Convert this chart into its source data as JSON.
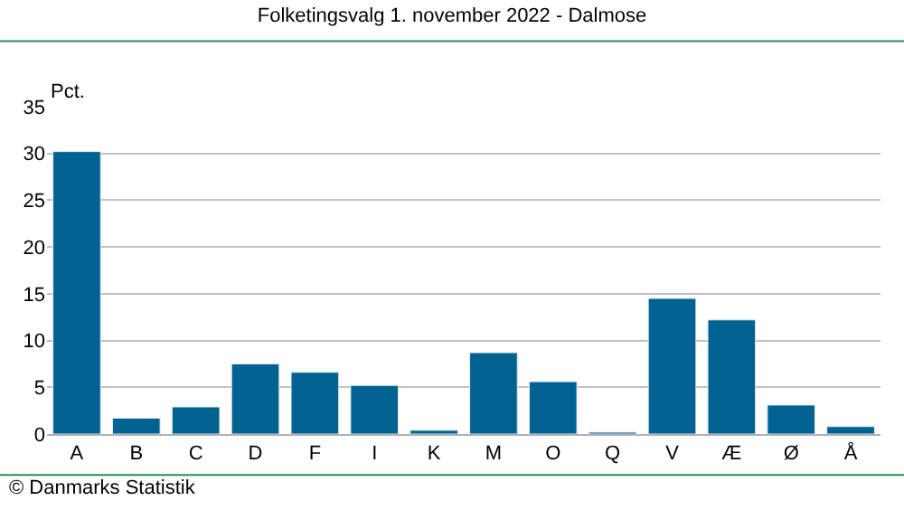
{
  "chart_data": {
    "type": "bar",
    "title": "Folketingsvalg 1. november 2022 - Dalmose",
    "ylabel": "Pct.",
    "categories": [
      "A",
      "B",
      "C",
      "D",
      "F",
      "I",
      "K",
      "M",
      "O",
      "Q",
      "V",
      "Æ",
      "Ø",
      "Å"
    ],
    "values": [
      30.2,
      1.7,
      2.9,
      7.5,
      6.6,
      5.2,
      0.4,
      8.7,
      5.6,
      0.2,
      14.5,
      12.2,
      3.1,
      0.8
    ],
    "color": "#006291",
    "ylim": [
      0,
      35
    ],
    "yticks": [
      0,
      5,
      10,
      15,
      20,
      25,
      30,
      35
    ],
    "grid": "y",
    "annotations": [
      "© Danmarks Statistik"
    ]
  }
}
